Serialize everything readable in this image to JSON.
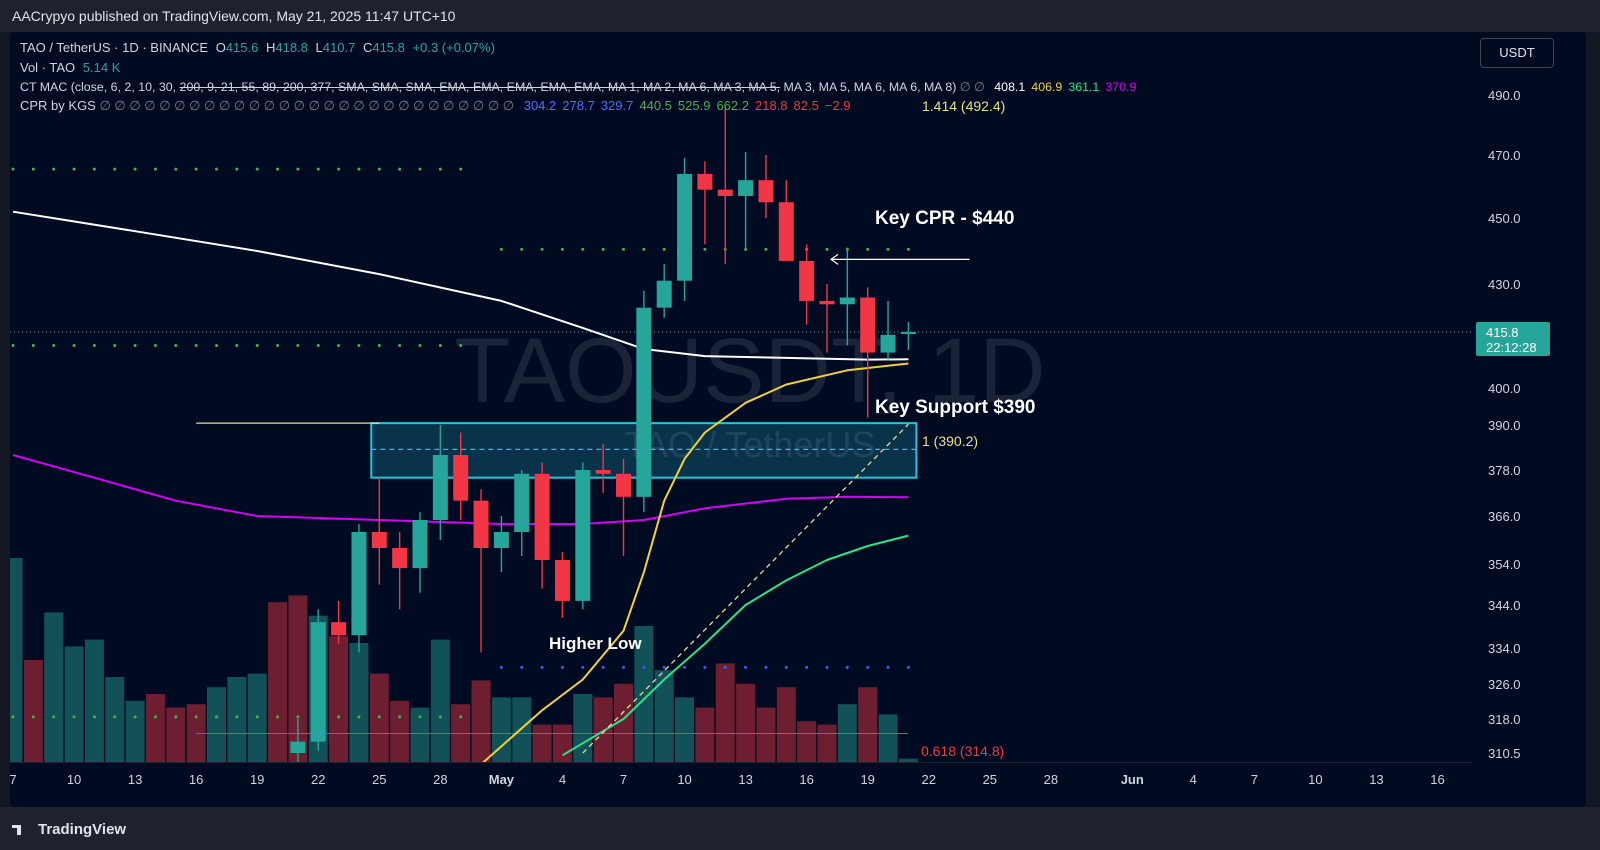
{
  "header": {
    "publisher": "AACrypyo published on TradingView.com, May 21, 2025 11:47 UTC+10"
  },
  "footer": {
    "brand": "TradingView"
  },
  "currency_button": "USDT",
  "legend": {
    "symbol": "TAO / TetherUS · 1D · BINANCE",
    "open_label": "O",
    "open": "415.6",
    "high_label": "H",
    "high": "418.8",
    "low_label": "L",
    "low": "410.7",
    "close_label": "C",
    "close": "415.8",
    "change": "+0.3 (+0.07%)",
    "vol_label": "Vol · TAO",
    "vol_value": "5.14 K",
    "ctmac_label": "CT MAC (close, 6, 2, 10, 30,",
    "ctmac_struck": "200, 9, 21, 55, 89, 200, 377, SMA, SMA, SMA, EMA, EMA, EMA, EMA, EMA, MA 1, MA 2, MA 6, MA 3, MA 5,",
    "ctmac_rest": "MA 3, MA 5, MA 6, MA 6, MA 8)",
    "ctmac_values": [
      {
        "v": "408.1",
        "color": "#ffffff"
      },
      {
        "v": "406.9",
        "color": "#f5d22e"
      },
      {
        "v": "361.1",
        "color": "#2ee28a"
      },
      {
        "v": "370.9",
        "color": "#d500f9"
      }
    ],
    "cpr_label": "CPR by KGS",
    "cpr_values": [
      {
        "v": "304.2",
        "color": "#4e6cff"
      },
      {
        "v": "278.7",
        "color": "#4e6cff"
      },
      {
        "v": "329.7",
        "color": "#4e6cff"
      },
      {
        "v": "440.5",
        "color": "#4caf50"
      },
      {
        "v": "525.9",
        "color": "#4caf50"
      },
      {
        "v": "662.2",
        "color": "#4caf50"
      },
      {
        "v": "218.8",
        "color": "#f23645"
      },
      {
        "v": "82.5",
        "color": "#f23645"
      },
      {
        "v": "−2.9",
        "color": "#f23645"
      }
    ]
  },
  "watermark": {
    "main": "TAOUSDT, 1D",
    "sub": "TAO / TetherUS"
  },
  "price_tag": {
    "price": "415.8",
    "countdown": "22:12:28"
  },
  "annotations": {
    "key_cpr": "Key CPR - $440",
    "key_support": "Key Support $390",
    "higher_low": "Higher Low",
    "fib_1414": "1.414 (492.4)",
    "fib_1": "1 (390.2)",
    "fib_0618": "0.618 (314.8)"
  },
  "colors": {
    "up": "#26a69a",
    "down": "#f23645",
    "ma_white": "#ffffff",
    "ma_yellow": "#f5d22e",
    "ma_green": "#2ee28a",
    "ma_magenta": "#d500f9",
    "cpr_green": "#4caf50",
    "cpr_blue": "#3d5afe",
    "zone": "#26c6da"
  },
  "chart_data": {
    "type": "candlestick",
    "y_tick_labels": [
      "490.0",
      "470.0",
      "450.0",
      "430.0",
      "415.8",
      "400.0",
      "390.0",
      "378.0",
      "366.0",
      "354.0",
      "344.0",
      "334.0",
      "326.0",
      "318.0",
      "310.5"
    ],
    "y_ticks": [
      490.0,
      470.0,
      450.0,
      430.0,
      400.0,
      390.0,
      378.0,
      366.0,
      354.0,
      344.0,
      334.0,
      326.0,
      318.0,
      310.5
    ],
    "x_ticks": [
      {
        "label": "7",
        "day": -24
      },
      {
        "label": "10",
        "day": -21
      },
      {
        "label": "13",
        "day": -18
      },
      {
        "label": "16",
        "day": -15
      },
      {
        "label": "19",
        "day": -12
      },
      {
        "label": "22",
        "day": -9
      },
      {
        "label": "25",
        "day": -6
      },
      {
        "label": "28",
        "day": -3
      },
      {
        "label": "May",
        "day": 0
      },
      {
        "label": "4",
        "day": 3
      },
      {
        "label": "7",
        "day": 6
      },
      {
        "label": "10",
        "day": 9
      },
      {
        "label": "13",
        "day": 12
      },
      {
        "label": "16",
        "day": 15
      },
      {
        "label": "19",
        "day": 18
      },
      {
        "label": "22",
        "day": 21
      },
      {
        "label": "25",
        "day": 24
      },
      {
        "label": "28",
        "day": 27
      },
      {
        "label": "Jun",
        "day": 31
      },
      {
        "label": "4",
        "day": 34
      },
      {
        "label": "7",
        "day": 37
      },
      {
        "label": "10",
        "day": 40
      },
      {
        "label": "13",
        "day": 43
      },
      {
        "label": "16",
        "day": 46
      }
    ],
    "candles": [
      {
        "day": -10,
        "o": 310.5,
        "h": 318,
        "l": 306,
        "c": 313
      },
      {
        "day": -9,
        "o": 313,
        "h": 343,
        "l": 311,
        "c": 340
      },
      {
        "day": -8,
        "o": 340,
        "h": 345,
        "l": 335,
        "c": 337
      },
      {
        "day": -7,
        "o": 337,
        "h": 364,
        "l": 333,
        "c": 362
      },
      {
        "day": -6,
        "o": 362,
        "h": 376,
        "l": 349,
        "c": 358
      },
      {
        "day": -5,
        "o": 358,
        "h": 362,
        "l": 343,
        "c": 353
      },
      {
        "day": -4,
        "o": 353,
        "h": 367,
        "l": 347,
        "c": 365
      },
      {
        "day": -3,
        "o": 365,
        "h": 390,
        "l": 360,
        "c": 382
      },
      {
        "day": -2,
        "o": 382,
        "h": 388,
        "l": 365,
        "c": 370
      },
      {
        "day": -1,
        "o": 370,
        "h": 373,
        "l": 333,
        "c": 358
      },
      {
        "day": 0,
        "o": 358,
        "h": 366,
        "l": 352,
        "c": 362
      },
      {
        "day": 1,
        "o": 362,
        "h": 378,
        "l": 356,
        "c": 377
      },
      {
        "day": 2,
        "o": 377,
        "h": 380,
        "l": 348,
        "c": 355
      },
      {
        "day": 3,
        "o": 355,
        "h": 357,
        "l": 341,
        "c": 345
      },
      {
        "day": 4,
        "o": 345,
        "h": 380,
        "l": 343,
        "c": 378
      },
      {
        "day": 5,
        "o": 378,
        "h": 385,
        "l": 372,
        "c": 377
      },
      {
        "day": 6,
        "o": 377,
        "h": 381,
        "l": 356,
        "c": 371
      },
      {
        "day": 7,
        "o": 371,
        "h": 428,
        "l": 367,
        "c": 423
      },
      {
        "day": 8,
        "o": 423,
        "h": 436,
        "l": 420,
        "c": 431
      },
      {
        "day": 9,
        "o": 431,
        "h": 469,
        "l": 425,
        "c": 464
      },
      {
        "day": 10,
        "o": 464,
        "h": 468,
        "l": 442,
        "c": 459
      },
      {
        "day": 11,
        "o": 459,
        "h": 486,
        "l": 436,
        "c": 457
      },
      {
        "day": 12,
        "o": 457,
        "h": 471,
        "l": 440,
        "c": 462
      },
      {
        "day": 13,
        "o": 462,
        "h": 470,
        "l": 450,
        "c": 455
      },
      {
        "day": 14,
        "o": 455,
        "h": 462,
        "l": 437,
        "c": 437
      },
      {
        "day": 15,
        "o": 437,
        "h": 442,
        "l": 418,
        "c": 425
      },
      {
        "day": 16,
        "o": 425,
        "h": 430,
        "l": 410,
        "c": 424
      },
      {
        "day": 17,
        "o": 424,
        "h": 441,
        "l": 412,
        "c": 426
      },
      {
        "day": 18,
        "o": 426,
        "h": 429,
        "l": 392,
        "c": 410
      },
      {
        "day": 19,
        "o": 410,
        "h": 425,
        "l": 408,
        "c": 415
      },
      {
        "day": 20,
        "o": 415.6,
        "h": 418.8,
        "l": 410.7,
        "c": 415.8
      }
    ],
    "volume": [
      {
        "day": -24,
        "v": 0.6,
        "up": true
      },
      {
        "day": -23,
        "v": 0.3,
        "up": false
      },
      {
        "day": -22,
        "v": 0.44,
        "up": true
      },
      {
        "day": -21,
        "v": 0.34,
        "up": true
      },
      {
        "day": -20,
        "v": 0.36,
        "up": true
      },
      {
        "day": -19,
        "v": 0.25,
        "up": true
      },
      {
        "day": -18,
        "v": 0.18,
        "up": true
      },
      {
        "day": -17,
        "v": 0.2,
        "up": false
      },
      {
        "day": -16,
        "v": 0.16,
        "up": false
      },
      {
        "day": -15,
        "v": 0.17,
        "up": false
      },
      {
        "day": -14,
        "v": 0.22,
        "up": true
      },
      {
        "day": -13,
        "v": 0.25,
        "up": true
      },
      {
        "day": -12,
        "v": 0.26,
        "up": true
      },
      {
        "day": -11,
        "v": 0.47,
        "up": false
      },
      {
        "day": -10,
        "v": 0.49,
        "up": false
      },
      {
        "day": -9,
        "v": 0.43,
        "up": true
      },
      {
        "day": -8,
        "v": 0.37,
        "up": false
      },
      {
        "day": -7,
        "v": 0.35,
        "up": true
      },
      {
        "day": -6,
        "v": 0.26,
        "up": false
      },
      {
        "day": -5,
        "v": 0.18,
        "up": false
      },
      {
        "day": -4,
        "v": 0.16,
        "up": true
      },
      {
        "day": -3,
        "v": 0.36,
        "up": true
      },
      {
        "day": -2,
        "v": 0.17,
        "up": false
      },
      {
        "day": -1,
        "v": 0.24,
        "up": false
      },
      {
        "day": 0,
        "v": 0.19,
        "up": true
      },
      {
        "day": 1,
        "v": 0.19,
        "up": true
      },
      {
        "day": 2,
        "v": 0.11,
        "up": false
      },
      {
        "day": 3,
        "v": 0.11,
        "up": false
      },
      {
        "day": 4,
        "v": 0.2,
        "up": true
      },
      {
        "day": 5,
        "v": 0.19,
        "up": false
      },
      {
        "day": 6,
        "v": 0.23,
        "up": false
      },
      {
        "day": 7,
        "v": 0.4,
        "up": true
      },
      {
        "day": 8,
        "v": 0.27,
        "up": true
      },
      {
        "day": 9,
        "v": 0.19,
        "up": true
      },
      {
        "day": 10,
        "v": 0.16,
        "up": false
      },
      {
        "day": 11,
        "v": 0.29,
        "up": false
      },
      {
        "day": 12,
        "v": 0.23,
        "up": false
      },
      {
        "day": 13,
        "v": 0.16,
        "up": false
      },
      {
        "day": 14,
        "v": 0.22,
        "up": false
      },
      {
        "day": 15,
        "v": 0.12,
        "up": false
      },
      {
        "day": 16,
        "v": 0.11,
        "up": false
      },
      {
        "day": 17,
        "v": 0.17,
        "up": true
      },
      {
        "day": 18,
        "v": 0.22,
        "up": false
      },
      {
        "day": 19,
        "v": 0.14,
        "up": true
      },
      {
        "day": 20,
        "v": 0.01,
        "up": true
      }
    ],
    "ma_white": [
      [
        -24,
        452
      ],
      [
        -18,
        446
      ],
      [
        -12,
        440
      ],
      [
        -6,
        433
      ],
      [
        0,
        425
      ],
      [
        4,
        417
      ],
      [
        7,
        411
      ],
      [
        10,
        409
      ],
      [
        14,
        408.5
      ],
      [
        18,
        408
      ],
      [
        20,
        408.1
      ]
    ],
    "ma_yellow": [
      [
        -1,
        308
      ],
      [
        2,
        320
      ],
      [
        4,
        327
      ],
      [
        6,
        338
      ],
      [
        7,
        352
      ],
      [
        8,
        370
      ],
      [
        9,
        381
      ],
      [
        10,
        388
      ],
      [
        12,
        396
      ],
      [
        14,
        401
      ],
      [
        17,
        405
      ],
      [
        20,
        406.9
      ]
    ],
    "ma_green": [
      [
        3,
        310
      ],
      [
        6,
        318
      ],
      [
        8,
        327
      ],
      [
        10,
        335
      ],
      [
        12,
        344
      ],
      [
        14,
        350
      ],
      [
        16,
        355
      ],
      [
        18,
        358.5
      ],
      [
        20,
        361.1
      ]
    ],
    "ma_magenta": [
      [
        -24,
        382
      ],
      [
        -20,
        376
      ],
      [
        -16,
        370
      ],
      [
        -12,
        366
      ],
      [
        -6,
        365
      ],
      [
        0,
        364
      ],
      [
        4,
        364
      ],
      [
        7,
        365
      ],
      [
        10,
        368
      ],
      [
        14,
        370.5
      ],
      [
        17,
        371
      ],
      [
        20,
        370.9
      ]
    ],
    "cpr_levels": [
      {
        "from": -24,
        "to": -1,
        "price": 465.5,
        "color": "#4caf50"
      },
      {
        "from": 0,
        "to": 20,
        "price": 440.5,
        "color": "#4caf50"
      },
      {
        "from": -24,
        "to": -1,
        "price": 412,
        "color": "#4caf50"
      },
      {
        "from": -24,
        "to": -1,
        "price": 318.5,
        "color": "#4caf50"
      },
      {
        "from": 0,
        "to": 20,
        "price": 329.7,
        "color": "#3d5afe"
      }
    ],
    "support_zone": {
      "from": -6,
      "to": 20,
      "top": 390.5,
      "bottom": 376,
      "mid": 383.5
    },
    "support_line": {
      "from": -15,
      "to": -6,
      "price": 390.5
    },
    "fib_0618_line": {
      "from": -15,
      "to": 20,
      "price": 314.8
    },
    "fib_trend": [
      [
        4,
        310.5
      ],
      [
        20,
        390.2
      ]
    ],
    "cpr_arrow": {
      "from": 16.2,
      "to": 23,
      "price": 440.5
    },
    "current_price": 415.8
  }
}
